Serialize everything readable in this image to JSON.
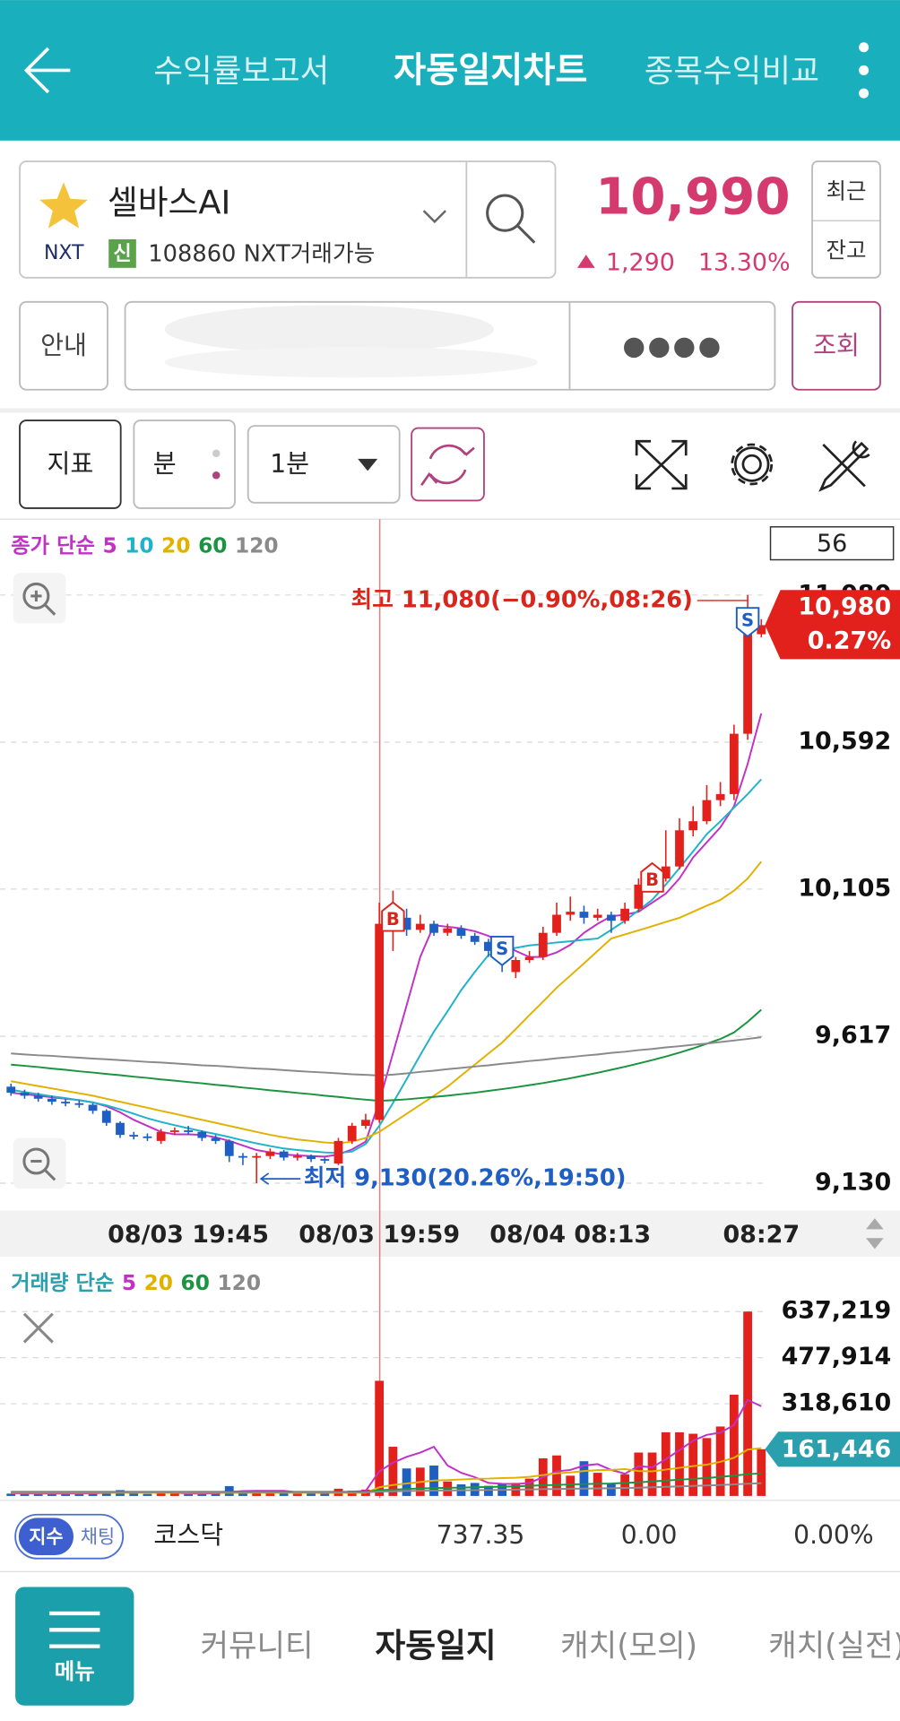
{
  "header": {
    "tabs": [
      "수익률보고서",
      "자동일지차트",
      "종목수익비교"
    ]
  },
  "stock": {
    "name": "셀바스AI",
    "market": "NXT",
    "badge": "신",
    "code_info": "108860 NXT거래가능",
    "price": "10,990",
    "change": "1,290",
    "change_rate": "13.30%",
    "buttons": [
      "최근",
      "잔고"
    ]
  },
  "query": {
    "guide": "안내",
    "password": "●●●●",
    "submit": "조회"
  },
  "toolbar": {
    "indicator": "지표",
    "unit": "분",
    "period": "1분"
  },
  "chart_data": [
    {
      "type": "candlestick",
      "legend_label": "종가 단순",
      "visible_count": 56,
      "categories": [
        null,
        null,
        null,
        null,
        null,
        null,
        null,
        null,
        null,
        null,
        null,
        null,
        null,
        "08/03 19:45",
        null,
        null,
        null,
        null,
        null,
        null,
        null,
        null,
        null,
        null,
        null,
        null,
        null,
        "08/03 19:59",
        null,
        null,
        null,
        null,
        null,
        null,
        null,
        null,
        null,
        null,
        null,
        null,
        null,
        "08/04 08:13",
        null,
        null,
        null,
        null,
        null,
        null,
        null,
        null,
        null,
        null,
        null,
        null,
        null,
        "08:27"
      ],
      "open": [
        9450,
        9430,
        9420,
        9410,
        9400,
        9395,
        9390,
        9370,
        9330,
        9290,
        9285,
        9270,
        9300,
        9305,
        9300,
        9280,
        9270,
        9220,
        9215,
        9220,
        9235,
        9215,
        9220,
        9210,
        9195,
        9270,
        9320,
        9340,
        9990,
        10010,
        9970,
        9990,
        9960,
        9975,
        9950,
        9930,
        9900,
        9830,
        9870,
        9880,
        9960,
        10020,
        10030,
        10010,
        10020,
        10000,
        10040,
        10120,
        10140,
        10180,
        10300,
        10330,
        10400,
        10420,
        10620,
        10950
      ],
      "high": [
        9460,
        9440,
        9430,
        9420,
        9410,
        9405,
        9395,
        9375,
        9335,
        9300,
        9295,
        9310,
        9315,
        9320,
        9305,
        9290,
        9275,
        9230,
        9230,
        9245,
        9240,
        9230,
        9225,
        9215,
        9280,
        9330,
        9360,
        10060,
        10100,
        10040,
        10020,
        10000,
        9990,
        9985,
        9960,
        9940,
        9910,
        9880,
        9900,
        9980,
        10060,
        10080,
        10050,
        10040,
        10030,
        10060,
        10140,
        10170,
        10300,
        10340,
        10380,
        10450,
        10460,
        10650,
        11080,
        11000
      ],
      "low": [
        9420,
        9410,
        9400,
        9390,
        9385,
        9380,
        9360,
        9320,
        9280,
        9275,
        9270,
        9260,
        9290,
        9290,
        9270,
        9260,
        9200,
        9190,
        9130,
        9210,
        9205,
        9205,
        9200,
        9195,
        9190,
        9260,
        9310,
        9330,
        9900,
        9950,
        9960,
        9950,
        9950,
        9940,
        9920,
        9880,
        9830,
        9810,
        9860,
        9870,
        9950,
        10000,
        9990,
        10000,
        9960,
        9990,
        10030,
        10100,
        10130,
        10170,
        10280,
        10320,
        10380,
        10400,
        10600,
        10940
      ],
      "close": [
        9430,
        9420,
        9410,
        9400,
        9395,
        9390,
        9370,
        9330,
        9290,
        9285,
        9280,
        9300,
        9305,
        9300,
        9280,
        9270,
        9220,
        9215,
        9220,
        9235,
        9215,
        9220,
        9210,
        9205,
        9270,
        9320,
        9340,
        9990,
        10010,
        9970,
        9990,
        9960,
        9975,
        9950,
        9930,
        9900,
        9860,
        9870,
        9880,
        9960,
        10020,
        10030,
        10010,
        10020,
        10000,
        10040,
        10120,
        10140,
        10180,
        10300,
        10330,
        10400,
        10420,
        10620,
        10950,
        10980
      ],
      "up_color": "#e3211c",
      "down_color": "#1f5fc4",
      "lines": [
        {
          "name": "5",
          "color": "#c231c6",
          "values": [
            9430,
            9425,
            9420,
            9415,
            9410,
            9405,
            9398,
            9385,
            9365,
            9340,
            9320,
            9300,
            9292,
            9292,
            9290,
            9282,
            9270,
            9255,
            9240,
            9232,
            9225,
            9222,
            9220,
            9218,
            9225,
            9242,
            9268,
            9400,
            9560,
            9720,
            9880,
            9985,
            9980,
            9975,
            9965,
            9950,
            9925,
            9900,
            9880,
            9880,
            9895,
            9920,
            9960,
            9990,
            10015,
            10020,
            10030,
            10060,
            10090,
            10140,
            10210,
            10260,
            10310,
            10380,
            10520,
            10687
          ]
        },
        {
          "name": "10",
          "color": "#1fb3c9",
          "values": [
            9440,
            9432,
            9425,
            9418,
            9412,
            9405,
            9398,
            9388,
            9375,
            9360,
            9345,
            9333,
            9322,
            9312,
            9302,
            9293,
            9283,
            9272,
            9262,
            9253,
            9245,
            9240,
            9236,
            9232,
            9230,
            9235,
            9260,
            9320,
            9396,
            9475,
            9555,
            9632,
            9700,
            9770,
            9830,
            9887,
            9900,
            9910,
            9918,
            9923,
            9928,
            9932,
            9937,
            9941,
            9970,
            10000,
            10035,
            10069,
            10120,
            10175,
            10230,
            10287,
            10330,
            10375,
            10420,
            10469
          ]
        },
        {
          "name": "20",
          "color": "#e2b100",
          "values": [
            9468,
            9460,
            9452,
            9444,
            9436,
            9428,
            9420,
            9410,
            9400,
            9390,
            9380,
            9370,
            9360,
            9350,
            9340,
            9330,
            9320,
            9310,
            9300,
            9290,
            9282,
            9275,
            9270,
            9265,
            9262,
            9268,
            9280,
            9300,
            9330,
            9360,
            9390,
            9420,
            9450,
            9487,
            9523,
            9560,
            9596,
            9641,
            9687,
            9732,
            9778,
            9818,
            9859,
            9900,
            9941,
            9955,
            9968,
            9982,
            9996,
            10010,
            10030,
            10050,
            10069,
            10100,
            10140,
            10196
          ]
        },
        {
          "name": "60",
          "color": "#1a9440",
          "values": [
            9523,
            9519,
            9515,
            9510,
            9506,
            9501,
            9497,
            9492,
            9488,
            9483,
            9479,
            9474,
            9470,
            9465,
            9461,
            9456,
            9452,
            9447,
            9443,
            9438,
            9434,
            9429,
            9425,
            9420,
            9416,
            9411,
            9407,
            9403,
            9405,
            9408,
            9412,
            9416,
            9420,
            9425,
            9430,
            9436,
            9442,
            9448,
            9455,
            9462,
            9470,
            9478,
            9487,
            9496,
            9506,
            9516,
            9527,
            9538,
            9550,
            9563,
            9577,
            9592,
            9608,
            9630,
            9665,
            9705
          ]
        },
        {
          "name": "120",
          "color": "#8a8a8a",
          "values": [
            9560,
            9557,
            9554,
            9552,
            9549,
            9546,
            9543,
            9541,
            9538,
            9535,
            9532,
            9530,
            9527,
            9524,
            9521,
            9519,
            9516,
            9513,
            9510,
            9508,
            9505,
            9502,
            9499,
            9497,
            9494,
            9491,
            9489,
            9487,
            9490,
            9494,
            9499,
            9503,
            9508,
            9512,
            9517,
            9521,
            9526,
            9530,
            9535,
            9539,
            9544,
            9548,
            9553,
            9557,
            9562,
            9566,
            9571,
            9575,
            9580,
            9584,
            9589,
            9593,
            9598,
            9603,
            9608,
            9614
          ]
        }
      ],
      "ylim": [
        9050,
        11124
      ],
      "yticks": [
        {
          "value": 9130,
          "label": "9,130"
        },
        {
          "value": 9617,
          "label": "9,617"
        },
        {
          "value": 10105,
          "label": "10,105"
        },
        {
          "value": 10592,
          "label": "10,592"
        },
        {
          "value": 11080,
          "label": "11,080"
        }
      ],
      "grid": true,
      "last": {
        "value": 10980,
        "label": "10,980",
        "rate": "0.27%",
        "color": "#e3211c"
      },
      "annotations": [
        {
          "text": "최고 11,080(−0.90%,08:26)",
          "value": 11080,
          "index": 54,
          "color": "#d9261c"
        },
        {
          "text": "최저 9,130(20.26%,19:50)",
          "value": 9130,
          "index": 18,
          "color": "#1f5fc4"
        }
      ],
      "markers": [
        {
          "label": "B",
          "index": 28
        },
        {
          "label": "S",
          "index": 36
        },
        {
          "label": "B",
          "index": 47
        },
        {
          "label": "S",
          "index": 54
        }
      ]
    },
    {
      "type": "bar",
      "legend_label": "거래량 단순",
      "legend_color": "#2a9fae",
      "values": [
        8000,
        7000,
        6000,
        9000,
        12000,
        8000,
        10000,
        15000,
        20000,
        9000,
        7000,
        12000,
        8000,
        6000,
        9000,
        10000,
        34000,
        14000,
        20000,
        11000,
        9000,
        8000,
        10000,
        12000,
        25000,
        18000,
        22000,
        398000,
        170000,
        95000,
        98000,
        105000,
        50000,
        40000,
        45000,
        35000,
        40000,
        45000,
        60000,
        130000,
        140000,
        70000,
        120000,
        80000,
        40000,
        75000,
        150000,
        150000,
        220000,
        220000,
        215000,
        200000,
        240000,
        350000,
        637219,
        161446
      ],
      "lines": [
        {
          "name": "5",
          "color": "#c231c6",
          "values": [
            9000,
            9000,
            8500,
            8500,
            8400,
            8800,
            9200,
            10800,
            13000,
            12400,
            12200,
            12600,
            11200,
            8400,
            8400,
            9000,
            13400,
            16600,
            17400,
            17800,
            17600,
            12400,
            11600,
            10000,
            12800,
            14600,
            17400,
            85000,
            115000,
            135000,
            150000,
            170000,
            105000,
            80000,
            65000,
            45000,
            42000,
            41000,
            45000,
            65000,
            85000,
            90000,
            105000,
            110000,
            90000,
            77000,
            103000,
            99000,
            127000,
            158000,
            191000,
            211000,
            219000,
            245000,
            332000,
            310000
          ]
        },
        {
          "name": "20",
          "color": "#e2b100",
          "values": [
            11000,
            11000,
            11000,
            11000,
            11000,
            11000,
            11000,
            11000,
            11000,
            11000,
            11000,
            11000,
            11000,
            11000,
            11000,
            11000,
            11000,
            11000,
            11000,
            11000,
            11000,
            11000,
            11000,
            11000,
            11000,
            11000,
            11000,
            30000,
            38000,
            43000,
            48000,
            53000,
            55000,
            57000,
            59000,
            60000,
            62000,
            63000,
            66000,
            72000,
            78000,
            81000,
            86000,
            89000,
            90000,
            93000,
            86000,
            85000,
            91000,
            97000,
            103000,
            108000,
            118000,
            132000,
            160000,
            165000
          ]
        },
        {
          "name": "60",
          "color": "#1a9440",
          "values": [
            14000,
            14000,
            14000,
            14000,
            14000,
            14000,
            14000,
            14000,
            14000,
            14000,
            14000,
            14000,
            14000,
            14000,
            14000,
            14000,
            14000,
            14000,
            14000,
            14000,
            14000,
            14000,
            14000,
            14000,
            14000,
            14000,
            14000,
            20000,
            22000,
            24000,
            26000,
            27000,
            28000,
            29000,
            30000,
            31000,
            32000,
            33000,
            35000,
            37000,
            38000,
            40000,
            41000,
            42000,
            43000,
            45000,
            47000,
            50000,
            53000,
            56000,
            59000,
            62000,
            66000,
            70000,
            75000,
            78000
          ]
        },
        {
          "name": "120",
          "color": "#8a8a8a",
          "values": [
            12000,
            12000,
            12000,
            12000,
            12000,
            12000,
            12000,
            12000,
            12000,
            12000,
            12000,
            12000,
            12000,
            12000,
            12000,
            12000,
            12000,
            12000,
            12000,
            12000,
            12000,
            12000,
            12000,
            12000,
            12000,
            12000,
            12000,
            15000,
            16000,
            17000,
            18000,
            18500,
            19000,
            19500,
            20000,
            20500,
            21000,
            21500,
            22500,
            23500,
            24000,
            25000,
            25500,
            26000,
            26500,
            27500,
            28500,
            30000,
            31500,
            33000,
            34500,
            36000,
            38000,
            40000,
            42000,
            44000
          ]
        }
      ],
      "ylim": [
        0,
        732000
      ],
      "yticks": [
        {
          "value": 318610,
          "label": "318,610"
        },
        {
          "value": 477914,
          "label": "477,914"
        },
        {
          "value": 637219,
          "label": "637,219"
        }
      ],
      "grid": true,
      "last": {
        "value": 161446,
        "label": "161,446",
        "color": "#2a9fae"
      }
    }
  ],
  "index_bar": {
    "toggle": [
      "지수",
      "채팅"
    ],
    "name": "코스닥",
    "value": "737.35",
    "change": "0.00",
    "rate": "0.00%"
  },
  "nav": {
    "menu": "메뉴",
    "items": [
      "커뮤니티",
      "자동일지",
      "캐치(모의)",
      "캐치(실전)"
    ]
  }
}
